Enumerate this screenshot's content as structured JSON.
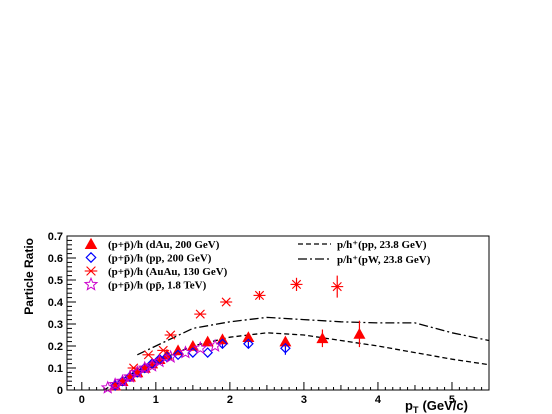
{
  "chart_data": {
    "type": "scatter",
    "title": "",
    "xlabel": "p",
    "xlabel_sub": "T",
    "xlabel_units": "(GeV/c)",
    "ylabel": "Particle Ratio",
    "xlim": [
      -0.2,
      5.5
    ],
    "ylim": [
      0,
      0.7
    ],
    "x_ticks": [
      0,
      1,
      2,
      3,
      4,
      5
    ],
    "x_tick_labels": [
      "0",
      "1",
      "2",
      "3",
      "4",
      "5"
    ],
    "y_ticks": [
      0,
      0.1,
      0.2,
      0.3,
      0.4,
      0.5,
      0.6,
      0.7
    ],
    "y_tick_labels": [
      "0",
      "0.1",
      "0.2",
      "0.3",
      "0.4",
      "0.5",
      "0.6",
      "0.7"
    ],
    "grid": false,
    "series": [
      {
        "name": "(p+p̄)/h (dAu, 200 GeV)",
        "marker": "filled-triangle",
        "color": "#ff0000",
        "points": [
          {
            "x": 0.45,
            "y": 0.02
          },
          {
            "x": 0.55,
            "y": 0.04
          },
          {
            "x": 0.65,
            "y": 0.06
          },
          {
            "x": 0.75,
            "y": 0.08
          },
          {
            "x": 0.85,
            "y": 0.1
          },
          {
            "x": 0.95,
            "y": 0.12
          },
          {
            "x": 1.05,
            "y": 0.14
          },
          {
            "x": 1.15,
            "y": 0.16
          },
          {
            "x": 1.3,
            "y": 0.18
          },
          {
            "x": 1.5,
            "y": 0.2
          },
          {
            "x": 1.7,
            "y": 0.22
          },
          {
            "x": 1.9,
            "y": 0.23
          },
          {
            "x": 2.25,
            "y": 0.24
          },
          {
            "x": 2.75,
            "y": 0.22
          },
          {
            "x": 3.25,
            "y": 0.235
          },
          {
            "x": 3.75,
            "y": 0.255
          }
        ],
        "errors": [
          0,
          0,
          0,
          0,
          0,
          0,
          0,
          0,
          0,
          0,
          0,
          0,
          0,
          0.01,
          0.04,
          0.06
        ]
      },
      {
        "name": "(p+p̄)/h (pp, 200 GeV)",
        "marker": "open-diamond",
        "color": "#0000ff",
        "points": [
          {
            "x": 0.45,
            "y": 0.02
          },
          {
            "x": 0.55,
            "y": 0.04
          },
          {
            "x": 0.65,
            "y": 0.06
          },
          {
            "x": 0.75,
            "y": 0.08
          },
          {
            "x": 0.85,
            "y": 0.1
          },
          {
            "x": 0.95,
            "y": 0.12
          },
          {
            "x": 1.05,
            "y": 0.14
          },
          {
            "x": 1.15,
            "y": 0.15
          },
          {
            "x": 1.3,
            "y": 0.16
          },
          {
            "x": 1.5,
            "y": 0.17
          },
          {
            "x": 1.7,
            "y": 0.17
          },
          {
            "x": 1.9,
            "y": 0.21
          },
          {
            "x": 2.25,
            "y": 0.21
          },
          {
            "x": 2.75,
            "y": 0.19
          }
        ],
        "errors": [
          0,
          0,
          0,
          0,
          0,
          0,
          0,
          0,
          0,
          0,
          0,
          0.02,
          0.02,
          0.03
        ]
      },
      {
        "name": "(p+p̄)/h (AuAu, 130 GeV)",
        "marker": "star",
        "color": "#ff0000",
        "points": [
          {
            "x": 0.7,
            "y": 0.1
          },
          {
            "x": 0.9,
            "y": 0.16
          },
          {
            "x": 1.1,
            "y": 0.18
          },
          {
            "x": 1.2,
            "y": 0.25
          },
          {
            "x": 1.6,
            "y": 0.345
          },
          {
            "x": 1.95,
            "y": 0.4
          },
          {
            "x": 2.4,
            "y": 0.43
          },
          {
            "x": 2.9,
            "y": 0.48
          },
          {
            "x": 3.45,
            "y": 0.47
          }
        ],
        "errors": [
          0,
          0,
          0,
          0,
          0,
          0,
          0.02,
          0.03,
          0.05
        ]
      },
      {
        "name": "(p+p̄)/h (pp̄, 1.8 TeV)",
        "marker": "open-star",
        "color": "#cc00cc",
        "points": [
          {
            "x": 0.35,
            "y": 0.01
          },
          {
            "x": 0.45,
            "y": 0.025
          },
          {
            "x": 0.55,
            "y": 0.04
          },
          {
            "x": 0.65,
            "y": 0.06
          },
          {
            "x": 0.75,
            "y": 0.08
          },
          {
            "x": 0.85,
            "y": 0.1
          },
          {
            "x": 0.95,
            "y": 0.11
          },
          {
            "x": 1.05,
            "y": 0.13
          },
          {
            "x": 1.2,
            "y": 0.15
          },
          {
            "x": 1.4,
            "y": 0.17
          },
          {
            "x": 1.6,
            "y": 0.19
          },
          {
            "x": 1.8,
            "y": 0.2
          }
        ],
        "errors": [
          0,
          0,
          0,
          0,
          0,
          0,
          0,
          0,
          0,
          0,
          0,
          0
        ]
      },
      {
        "name": "p/h⁺(pp, 23.8 GeV)",
        "line": "dashed",
        "color": "#000000",
        "points": [
          {
            "x": 0.3,
            "y": 0.0
          },
          {
            "x": 0.6,
            "y": 0.06
          },
          {
            "x": 1.0,
            "y": 0.13
          },
          {
            "x": 1.5,
            "y": 0.2
          },
          {
            "x": 2.0,
            "y": 0.24
          },
          {
            "x": 2.5,
            "y": 0.26
          },
          {
            "x": 3.0,
            "y": 0.25
          },
          {
            "x": 3.5,
            "y": 0.225
          },
          {
            "x": 4.0,
            "y": 0.2
          },
          {
            "x": 4.5,
            "y": 0.17
          },
          {
            "x": 5.0,
            "y": 0.14
          },
          {
            "x": 5.5,
            "y": 0.115
          }
        ]
      },
      {
        "name": "p/h⁺(pW, 23.8 GeV)",
        "line": "dash-dot",
        "color": "#000000",
        "points": [
          {
            "x": 0.75,
            "y": 0.16
          },
          {
            "x": 1.0,
            "y": 0.2
          },
          {
            "x": 1.5,
            "y": 0.28
          },
          {
            "x": 2.0,
            "y": 0.31
          },
          {
            "x": 2.5,
            "y": 0.33
          },
          {
            "x": 3.0,
            "y": 0.32
          },
          {
            "x": 3.5,
            "y": 0.31
          },
          {
            "x": 4.0,
            "y": 0.305
          },
          {
            "x": 4.5,
            "y": 0.305
          },
          {
            "x": 5.0,
            "y": 0.26
          },
          {
            "x": 5.5,
            "y": 0.225
          }
        ]
      }
    ]
  }
}
